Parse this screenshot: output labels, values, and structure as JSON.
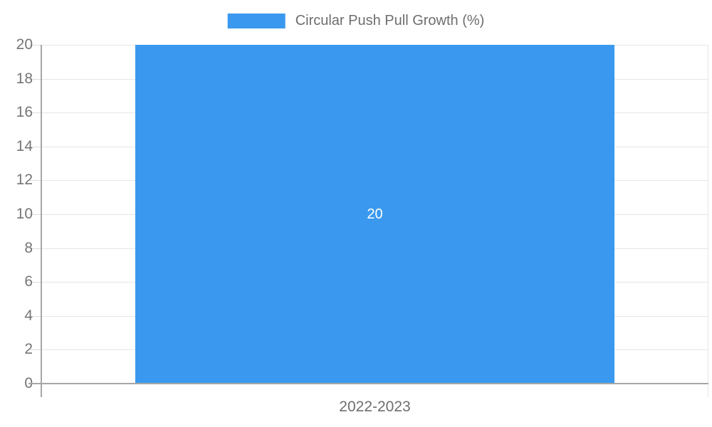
{
  "chart_data": {
    "type": "bar",
    "title": "",
    "categories": [
      "2022-2023"
    ],
    "series": [
      {
        "name": "Circular Push Pull Growth (%)",
        "values": [
          20
        ]
      }
    ],
    "bar_labels": [
      "20"
    ],
    "xlabel": "",
    "ylabel": "",
    "ylim": [
      0,
      20
    ],
    "yticks": [
      0,
      2,
      4,
      6,
      8,
      10,
      12,
      14,
      16,
      18,
      20
    ],
    "ytick_labels": [
      "0",
      "2",
      "4",
      "6",
      "8",
      "10",
      "12",
      "14",
      "16",
      "18",
      "20"
    ],
    "grid": true,
    "legend_position": "top",
    "colors": {
      "bar": "#3a99ee",
      "gridline": "#e6e6e6",
      "axis_line": "#a6a6a6",
      "tick_text": "#757575",
      "bar_label_text": "#ffffff"
    }
  },
  "legend": {
    "label": "Circular Push Pull Growth (%)",
    "swatch_color": "#3a99ee"
  },
  "x_axis": {
    "category_label": "2022-2023"
  },
  "bar": {
    "value": 20,
    "label": "20"
  }
}
